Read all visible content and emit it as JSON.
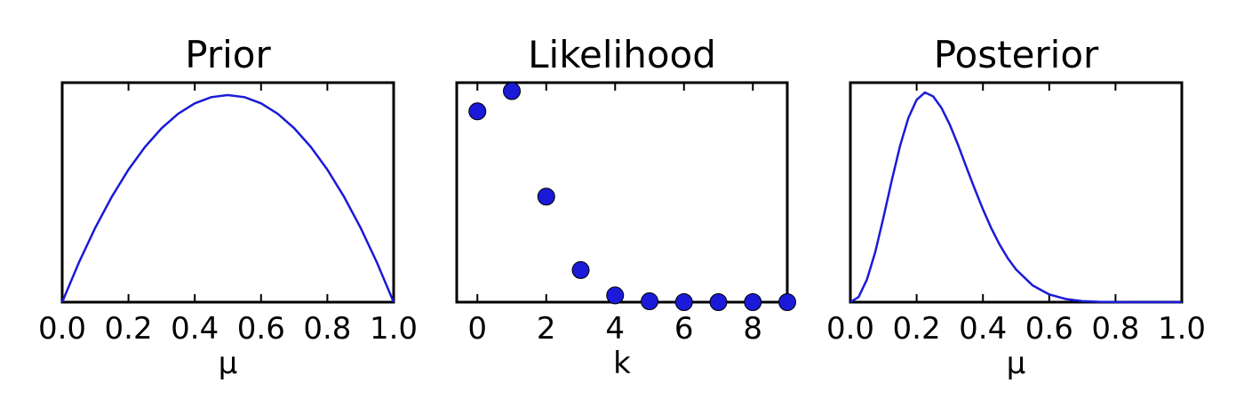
{
  "colors": {
    "series": "#1a1ad8",
    "axes": "#000000",
    "background": "#ffffff"
  },
  "chart_data": [
    {
      "type": "line",
      "title": "Prior",
      "xlabel": "μ",
      "ylabel": "",
      "xlim": [
        0.0,
        1.0
      ],
      "ylim": [
        0.0,
        1.06
      ],
      "xticks": [
        0.0,
        0.2,
        0.4,
        0.6,
        0.8,
        1.0
      ],
      "xtick_labels": [
        "0.0",
        "0.2",
        "0.4",
        "0.6",
        "0.8",
        "1.0"
      ],
      "yticks_visible": false,
      "grid": false,
      "x": [
        0.0,
        0.05,
        0.1,
        0.15,
        0.2,
        0.25,
        0.3,
        0.35,
        0.4,
        0.45,
        0.5,
        0.55,
        0.6,
        0.65,
        0.7,
        0.75,
        0.8,
        0.85,
        0.9,
        0.95,
        1.0
      ],
      "y": [
        0.0,
        0.19,
        0.36,
        0.51,
        0.64,
        0.75,
        0.84,
        0.91,
        0.96,
        0.99,
        1.0,
        0.99,
        0.96,
        0.91,
        0.84,
        0.75,
        0.64,
        0.51,
        0.36,
        0.19,
        0.0
      ]
    },
    {
      "type": "scatter",
      "title": "Likelihood",
      "xlabel": "k",
      "ylabel": "",
      "xlim": [
        -0.6,
        9.0
      ],
      "ylim": [
        0.0,
        0.26
      ],
      "xticks": [
        0,
        2,
        4,
        6,
        8
      ],
      "xtick_labels": [
        "0",
        "2",
        "4",
        "6",
        "8"
      ],
      "yticks_visible": false,
      "grid": false,
      "x": [
        0,
        1,
        2,
        3,
        4,
        5,
        6,
        7,
        8,
        9
      ],
      "y": [
        0.226,
        0.25,
        0.125,
        0.038,
        0.008,
        0.001,
        0.0,
        0.0,
        0.0,
        0.0
      ]
    },
    {
      "type": "line",
      "title": "Posterior",
      "xlabel": "μ",
      "ylabel": "",
      "xlim": [
        0.0,
        1.0
      ],
      "ylim": [
        0.0,
        1.05
      ],
      "xticks": [
        0.0,
        0.2,
        0.4,
        0.6,
        0.8,
        1.0
      ],
      "xtick_labels": [
        "0.0",
        "0.2",
        "0.4",
        "0.6",
        "0.8",
        "1.0"
      ],
      "yticks_visible": false,
      "grid": false,
      "x": [
        0.0,
        0.025,
        0.05,
        0.075,
        0.1,
        0.125,
        0.15,
        0.175,
        0.2,
        0.225,
        0.25,
        0.275,
        0.3,
        0.325,
        0.35,
        0.375,
        0.4,
        0.425,
        0.45,
        0.475,
        0.5,
        0.55,
        0.6,
        0.65,
        0.7,
        0.75,
        0.8,
        0.85,
        0.9,
        0.95,
        1.0
      ],
      "y": [
        0.0,
        0.025,
        0.108,
        0.239,
        0.406,
        0.583,
        0.748,
        0.881,
        0.968,
        1.003,
        0.984,
        0.929,
        0.849,
        0.752,
        0.646,
        0.543,
        0.444,
        0.354,
        0.276,
        0.21,
        0.156,
        0.08,
        0.037,
        0.015,
        0.005,
        0.0015,
        0.0004,
        0.0,
        0.0,
        0.0,
        0.0
      ]
    }
  ]
}
